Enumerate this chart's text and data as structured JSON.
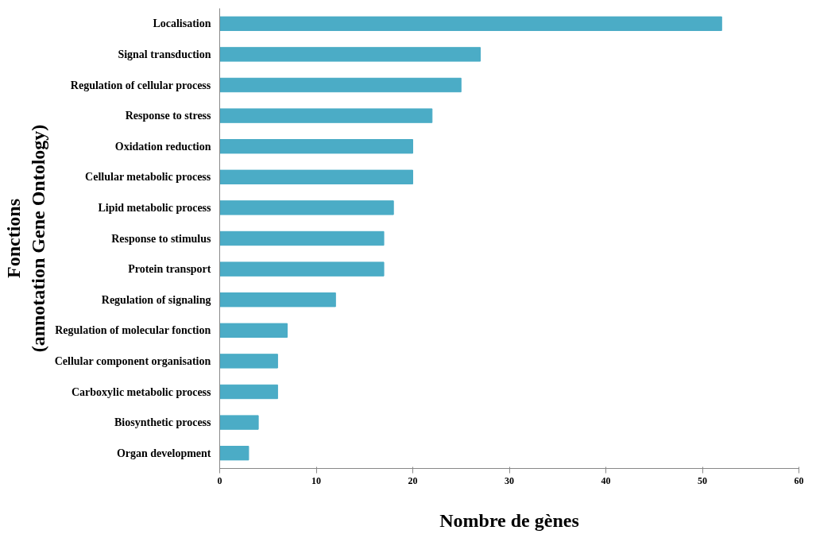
{
  "chart_data": {
    "type": "bar",
    "orientation": "horizontal",
    "xlabel": "Nombre de gènes",
    "ylabel": "Fonctions\n(annotation Gene Ontology)",
    "categories": [
      "Localisation",
      "Signal transduction",
      "Regulation of cellular process",
      "Response to stress",
      "Oxidation reduction",
      "Cellular metabolic process",
      "Lipid metabolic process",
      "Response to stimulus",
      "Protein transport",
      "Regulation of signaling",
      "Regulation of molecular fonction",
      "Cellular component organisation",
      "Carboxylic metabolic process",
      "Biosynthetic process",
      "Organ development"
    ],
    "values": [
      52,
      27,
      25,
      22,
      20,
      20,
      18,
      17,
      17,
      12,
      7,
      6,
      6,
      4,
      3
    ],
    "color": "#4bacc6",
    "xlim": [
      0,
      60
    ],
    "xticks": [
      0,
      10,
      20,
      30,
      40,
      50,
      60
    ],
    "grid": false
  }
}
